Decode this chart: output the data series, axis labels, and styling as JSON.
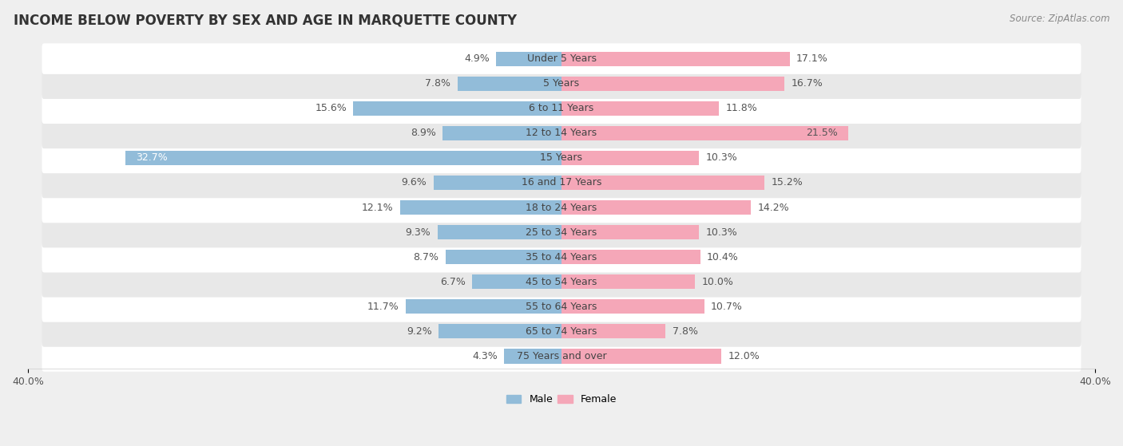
{
  "title": "INCOME BELOW POVERTY BY SEX AND AGE IN MARQUETTE COUNTY",
  "source": "Source: ZipAtlas.com",
  "categories": [
    "Under 5 Years",
    "5 Years",
    "6 to 11 Years",
    "12 to 14 Years",
    "15 Years",
    "16 and 17 Years",
    "18 to 24 Years",
    "25 to 34 Years",
    "35 to 44 Years",
    "45 to 54 Years",
    "55 to 64 Years",
    "65 to 74 Years",
    "75 Years and over"
  ],
  "male": [
    4.9,
    7.8,
    15.6,
    8.9,
    32.7,
    9.6,
    12.1,
    9.3,
    8.7,
    6.7,
    11.7,
    9.2,
    4.3
  ],
  "female": [
    17.1,
    16.7,
    11.8,
    21.5,
    10.3,
    15.2,
    14.2,
    10.3,
    10.4,
    10.0,
    10.7,
    7.8,
    12.0
  ],
  "male_color": "#92bcd9",
  "female_color": "#f5a7b8",
  "bar_height": 0.58,
  "xlim": 40.0,
  "background_color": "#efefef",
  "row_bg_even": "#ffffff",
  "row_bg_odd": "#e8e8e8",
  "title_fontsize": 12,
  "label_fontsize": 9,
  "tick_fontsize": 9,
  "source_fontsize": 8.5
}
